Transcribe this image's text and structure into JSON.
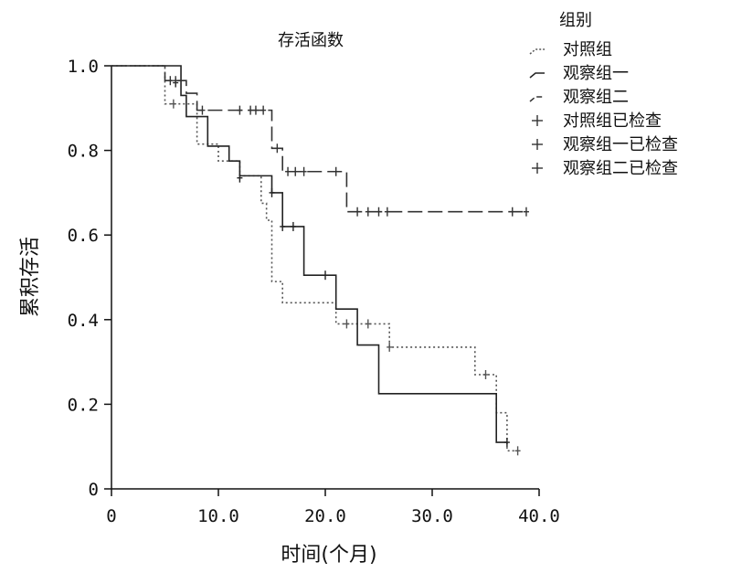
{
  "chart_data": {
    "type": "line",
    "title": "存活函数",
    "xlabel": "时间(个月)",
    "ylabel": "累积存活",
    "xlim": [
      0,
      40
    ],
    "ylim": [
      0,
      1
    ],
    "x_ticks": [
      0,
      10,
      20,
      30,
      40
    ],
    "x_tick_labels": [
      "0",
      "10.0",
      "20.0",
      "30.0",
      "40.0"
    ],
    "y_ticks": [
      0,
      0.2,
      0.4,
      0.6,
      0.8,
      1.0
    ],
    "y_tick_labels": [
      "0",
      "0.2",
      "0.4",
      "0.6",
      "0.8",
      "1.0"
    ],
    "grid": false,
    "legend_title": "组别",
    "legend_position": "top-right outside",
    "censor_legend": [
      "对照组已检查",
      "观察组一已检查",
      "观察组二已检查"
    ],
    "series": [
      {
        "name": "对照组",
        "style": "dotted",
        "color": "#555555",
        "steps": [
          [
            0,
            1.0
          ],
          [
            5,
            0.91
          ],
          [
            8,
            0.815
          ],
          [
            10,
            0.775
          ],
          [
            12,
            0.74
          ],
          [
            14,
            0.675
          ],
          [
            14.5,
            0.635
          ],
          [
            15,
            0.49
          ],
          [
            16,
            0.44
          ],
          [
            21,
            0.39
          ],
          [
            26,
            0.335
          ],
          [
            34,
            0.27
          ],
          [
            36,
            0.18
          ],
          [
            37,
            0.09
          ],
          [
            38,
            0.09
          ]
        ],
        "censored": [
          [
            5.8,
            0.91
          ],
          [
            22,
            0.39
          ],
          [
            24,
            0.39
          ],
          [
            26,
            0.335
          ],
          [
            35,
            0.27
          ],
          [
            38,
            0.09
          ]
        ]
      },
      {
        "name": "观察组一",
        "style": "solid",
        "color": "#222222",
        "steps": [
          [
            0,
            1.0
          ],
          [
            6.5,
            0.93
          ],
          [
            7,
            0.88
          ],
          [
            9,
            0.81
          ],
          [
            11,
            0.775
          ],
          [
            12,
            0.74
          ],
          [
            14,
            0.74
          ],
          [
            15,
            0.7
          ],
          [
            16,
            0.62
          ],
          [
            18,
            0.505
          ],
          [
            21,
            0.425
          ],
          [
            23,
            0.34
          ],
          [
            25,
            0.225
          ],
          [
            36,
            0.11
          ],
          [
            37,
            0.11
          ]
        ],
        "censored": [
          [
            6,
            0.96
          ],
          [
            12,
            0.735
          ],
          [
            15,
            0.7
          ],
          [
            16,
            0.62
          ],
          [
            17,
            0.62
          ],
          [
            20,
            0.505
          ],
          [
            37,
            0.11
          ]
        ]
      },
      {
        "name": "观察组二",
        "style": "dashed",
        "color": "#333333",
        "steps": [
          [
            0,
            1.0
          ],
          [
            5,
            0.965
          ],
          [
            7,
            0.935
          ],
          [
            8,
            0.895
          ],
          [
            15,
            0.805
          ],
          [
            16,
            0.75
          ],
          [
            22,
            0.655
          ],
          [
            39,
            0.655
          ]
        ],
        "censored": [
          [
            5.5,
            0.965
          ],
          [
            6,
            0.965
          ],
          [
            8.5,
            0.895
          ],
          [
            12,
            0.895
          ],
          [
            13,
            0.895
          ],
          [
            13.5,
            0.895
          ],
          [
            14.2,
            0.895
          ],
          [
            15.5,
            0.805
          ],
          [
            16.5,
            0.75
          ],
          [
            17.2,
            0.75
          ],
          [
            18,
            0.75
          ],
          [
            21,
            0.75
          ],
          [
            23,
            0.655
          ],
          [
            24,
            0.655
          ],
          [
            25,
            0.655
          ],
          [
            25.8,
            0.655
          ],
          [
            37.5,
            0.655
          ],
          [
            38.8,
            0.655
          ]
        ]
      }
    ]
  }
}
